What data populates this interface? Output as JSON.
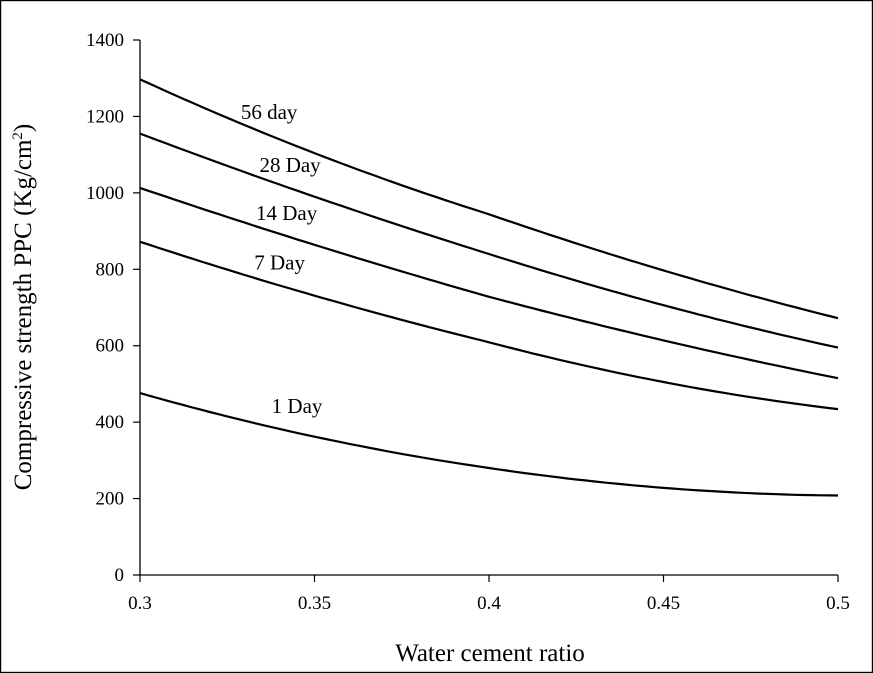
{
  "chart_data": {
    "type": "line",
    "title": "",
    "xlabel": "Water cement ratio",
    "ylabel": "Compressive strength PPC (Kg/cm",
    "ylabel_sup": "2",
    "ylabel_close": ")",
    "xlim": [
      0.3,
      0.5
    ],
    "ylim": [
      0,
      1400
    ],
    "x_ticks": [
      0.3,
      0.35,
      0.4,
      0.45,
      0.5
    ],
    "x_tick_labels": [
      "0.3",
      "0.35",
      "0.4",
      "0.45",
      "0.5"
    ],
    "y_ticks": [
      0,
      200,
      400,
      600,
      800,
      1000,
      1200,
      1400
    ],
    "y_tick_labels": [
      "0",
      "200",
      "400",
      "600",
      "800",
      "1000",
      "1200",
      "1400"
    ],
    "grid": false,
    "legend": "none",
    "x": [
      0.3,
      0.35,
      0.4,
      0.45,
      0.5
    ],
    "series": [
      {
        "name": "56 day",
        "values": [
          1297,
          1104,
          944,
          797,
          672
        ]
      },
      {
        "name": "28 Day",
        "values": [
          1155,
          990,
          840,
          706,
          595
        ]
      },
      {
        "name": "14 Day",
        "values": [
          1013,
          864,
          728,
          614,
          515
        ]
      },
      {
        "name": "7 Day",
        "values": [
          872,
          731,
          609,
          505,
          434
        ]
      },
      {
        "name": "1 Day",
        "values": [
          476,
          362,
          280,
          228,
          208
        ]
      }
    ]
  }
}
